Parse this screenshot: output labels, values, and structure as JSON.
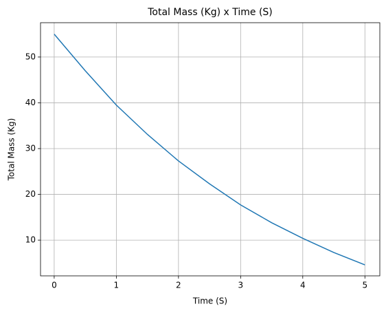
{
  "chart_data": {
    "type": "line",
    "title": "Total Mass (Kg) x Time (S)",
    "x_label": "Time (S)",
    "y_label": "Total Mass (Kg)",
    "x": [
      0,
      0.5,
      1,
      1.5,
      2,
      2.5,
      3,
      3.5,
      4,
      4.5,
      5
    ],
    "series": [
      {
        "name": "Total Mass",
        "color": "#1f77b4",
        "values": [
          55,
          47,
          39.5,
          33.1,
          27.3,
          22.3,
          17.7,
          13.8,
          10.4,
          7.3,
          4.6
        ]
      }
    ],
    "xlim": [
      -0.22,
      5.24
    ],
    "ylim": [
      2.2,
      57.5
    ],
    "xticks": [
      0,
      1,
      2,
      3,
      4,
      5
    ],
    "yticks": [
      10,
      20,
      30,
      40,
      50
    ],
    "grid": true
  }
}
